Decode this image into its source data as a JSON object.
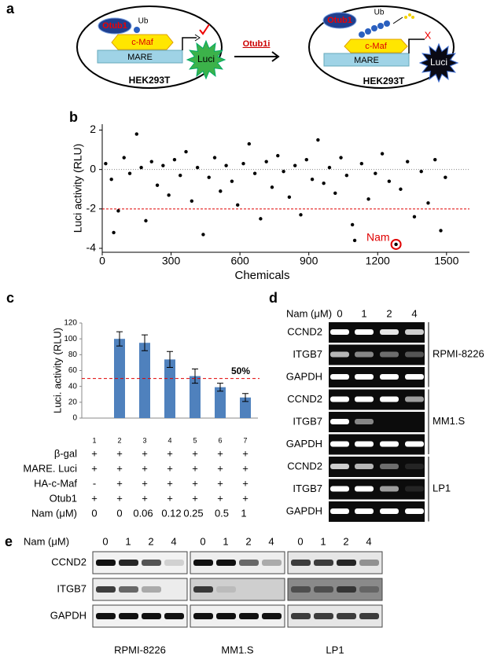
{
  "panel_a": {
    "label": "a",
    "left": {
      "enzyme": "Otub1",
      "ubiquitin": "Ub",
      "factor": "c-Maf",
      "element": "MARE",
      "reporter": "Luci",
      "cell": "HEK293T"
    },
    "inhibitor": "Otub1i",
    "right": {
      "enzyme": "Otub1",
      "ubiquitin": "Ub",
      "factor": "c-Maf",
      "element": "MARE",
      "reporter": "Luci",
      "cell": "HEK293T",
      "blocked": "X"
    }
  },
  "chart_data": [
    {
      "type": "scatter",
      "label": "b",
      "color": "#000000",
      "x": [
        15,
        40,
        50,
        70,
        95,
        120,
        150,
        170,
        190,
        215,
        240,
        265,
        290,
        315,
        340,
        365,
        390,
        415,
        440,
        465,
        490,
        515,
        540,
        565,
        590,
        615,
        640,
        665,
        690,
        715,
        740,
        765,
        790,
        815,
        840,
        865,
        890,
        915,
        940,
        965,
        990,
        1015,
        1040,
        1065,
        1090,
        1100,
        1130,
        1160,
        1190,
        1220,
        1250,
        1280,
        1300,
        1330,
        1360,
        1390,
        1420,
        1450,
        1475,
        1495
      ],
      "values": [
        0.3,
        -0.5,
        -3.2,
        -2.1,
        0.6,
        -0.2,
        1.8,
        0.1,
        -2.6,
        0.4,
        -0.8,
        0.2,
        -1.3,
        0.5,
        -0.3,
        0.9,
        -1.6,
        0.1,
        -3.3,
        -0.4,
        0.6,
        -1.1,
        0.2,
        -0.6,
        -1.8,
        0.3,
        1.3,
        -0.2,
        -2.5,
        0.4,
        -0.9,
        0.7,
        -0.1,
        -1.4,
        0.2,
        -2.3,
        0.5,
        -0.5,
        1.5,
        -0.7,
        0.1,
        -1.2,
        0.6,
        -0.3,
        -2.8,
        -3.6,
        0.3,
        -1.5,
        -0.2,
        0.8,
        -0.6,
        -3.8,
        -1.0,
        0.4,
        -2.4,
        -0.1,
        -1.7,
        0.5,
        -3.1,
        -0.4
      ],
      "xlim": [
        0,
        1600
      ],
      "xticks": [
        0,
        300,
        600,
        900,
        1200,
        1500
      ],
      "ylim": [
        -4.2,
        2.3
      ],
      "yticks": [
        -4,
        -2,
        0,
        2
      ],
      "x_label": "Chemicals",
      "y_label": "Luci activity (RLU)",
      "reference_lines": [
        {
          "value": -2,
          "color": "#e00000"
        },
        {
          "value": 0,
          "color": "#888888"
        }
      ],
      "annotation": "Nam",
      "annotation_color": "#e00000"
    },
    {
      "type": "bar",
      "label": "c",
      "color": "#4f81bd",
      "categories": [
        "1",
        "2",
        "3",
        "4",
        "5",
        "6",
        "7"
      ],
      "values": [
        0,
        100,
        95,
        74,
        53,
        39,
        26
      ],
      "errors": [
        null,
        9,
        10,
        10,
        9,
        5,
        5
      ],
      "ylim": [
        0,
        120
      ],
      "yticks": [
        0,
        20,
        40,
        60,
        80,
        100,
        120
      ],
      "y_label": "Luci. activity (RLU)",
      "reference_line": {
        "value": 50,
        "label": "50%",
        "color": "#e00000"
      },
      "conditions": [
        {
          "name": "β-gal",
          "values": [
            "+",
            "+",
            "+",
            "+",
            "+",
            "+",
            "+"
          ]
        },
        {
          "name": "MARE. Luci",
          "values": [
            "+",
            "+",
            "+",
            "+",
            "+",
            "+",
            "+"
          ]
        },
        {
          "name": "HA-c-Maf",
          "values": [
            "-",
            "+",
            "+",
            "+",
            "+",
            "+",
            "+"
          ]
        },
        {
          "name": "Otub1",
          "values": [
            "+",
            "+",
            "+",
            "+",
            "+",
            "+",
            "+"
          ]
        },
        {
          "name": "Nam (μM)",
          "values": [
            "0",
            "0",
            "0.06",
            "0.12",
            "0.25",
            "0.5",
            "1"
          ]
        }
      ]
    }
  ],
  "panel_d": {
    "label": "d",
    "treatment_label": "Nam (μM)",
    "lanes": [
      "0",
      "1",
      "2",
      "4"
    ],
    "groups": [
      {
        "name": "RPMI-8226",
        "rows": [
          "CCND2",
          "ITGB7",
          "GAPDH"
        ]
      },
      {
        "name": "MM1.S",
        "rows": [
          "CCND2",
          "ITGB7",
          "GAPDH"
        ]
      },
      {
        "name": "LP1",
        "rows": [
          "CCND2",
          "ITGB7",
          "GAPDH"
        ]
      }
    ]
  },
  "panel_e": {
    "label": "e",
    "treatment_label": "Nam (μM)",
    "rows": [
      "CCND2",
      "ITGB7",
      "GAPDH"
    ],
    "groups": [
      {
        "name": "RPMI-8226",
        "lanes": [
          "0",
          "1",
          "2",
          "4"
        ]
      },
      {
        "name": "MM1.S",
        "lanes": [
          "0",
          "1",
          "2",
          "4"
        ]
      },
      {
        "name": "LP1",
        "lanes": [
          "0",
          "1",
          "2",
          "4"
        ]
      }
    ]
  }
}
